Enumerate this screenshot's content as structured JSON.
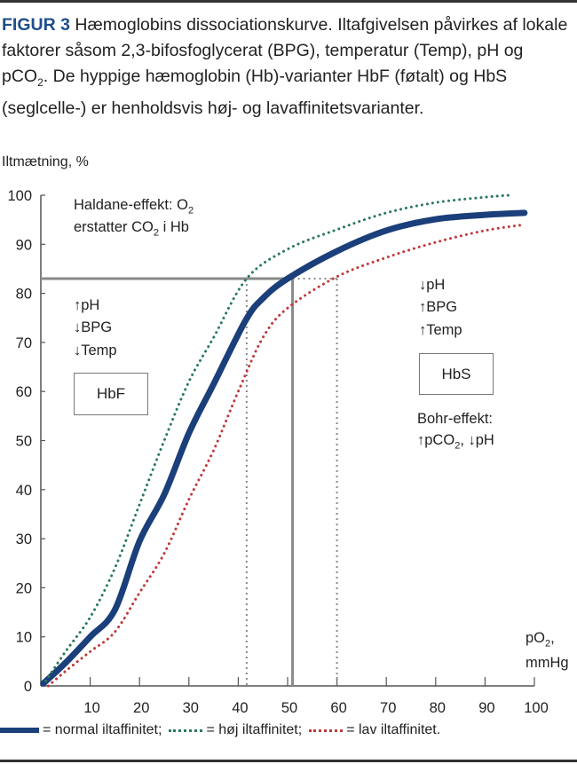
{
  "caption": {
    "label": "FIGUR 3",
    "text": " Hæmoglobins dissociationskurve. Iltafgivelsen påvirkes af lokale faktorer såsom 2,3-bifosfoglycerat (BPG), temperatur (Temp), pH og pCO",
    "sub": "2",
    "text2": ". De hyppige hæmoglobin (Hb)-varianter HbF (føtalt) og HbS (seglcelle-) er henholdsvis høj- og lavaffinitetsvarianter."
  },
  "annotations": {
    "haldane_1": "Haldane-effekt: O",
    "haldane_1_sub": "2",
    "haldane_2a": "erstatter CO",
    "haldane_2_sub": "2",
    "haldane_2b": " i Hb",
    "left_1": "↑pH",
    "left_2": "↓BPG",
    "left_3": "↓Temp",
    "hbf": "HbF",
    "right_1": "↓pH",
    "right_2": "↑BPG",
    "right_3": "↑Temp",
    "hbs": "HbS",
    "bohr_1": "Bohr-effekt:",
    "bohr_2a": "↑pCO",
    "bohr_2_sub": "2",
    "bohr_2b": ", ↓pH"
  },
  "chart_data": {
    "type": "line",
    "title": "Hæmoglobins dissociationskurve",
    "ylabel": "Iltmætning, %",
    "xlabel_1": "pO",
    "xlabel_sub": "2",
    "xlabel_2": ",",
    "xlabel_unit": "mmHg",
    "xlim": [
      0,
      100
    ],
    "ylim": [
      0,
      100
    ],
    "xticks": [
      10,
      20,
      30,
      40,
      50,
      60,
      70,
      80,
      90,
      100
    ],
    "yticks": [
      0,
      10,
      20,
      30,
      40,
      50,
      60,
      70,
      80,
      90,
      100
    ],
    "grid": false,
    "series": [
      {
        "name": "normal iltaffinitet",
        "style": "solid",
        "color": "#1a3f7a",
        "x": [
          0.5,
          5,
          10,
          15,
          20,
          25,
          30,
          35,
          41.5,
          45,
          50,
          60,
          70,
          80,
          90,
          98
        ],
        "y": [
          0.5,
          4.7,
          10,
          15.5,
          29.5,
          39,
          51.5,
          61.5,
          74.5,
          79,
          83,
          88.6,
          92.8,
          95.1,
          96,
          96.4
        ]
      },
      {
        "name": "høj iltaffinitet",
        "style": "dotted",
        "color": "#2a7a5a",
        "x": [
          1,
          5,
          10,
          15,
          20,
          25,
          30,
          35,
          41.7,
          50,
          60,
          70,
          80,
          90,
          95
        ],
        "y": [
          1,
          7,
          14,
          24,
          37,
          50,
          62,
          71,
          83,
          89,
          93,
          96.4,
          98.5,
          99.6,
          100
        ]
      },
      {
        "name": "lav iltaffinitet",
        "style": "dotted",
        "color": "#c0393b",
        "x": [
          1.5,
          5,
          10,
          15,
          20,
          25,
          30,
          35,
          40,
          45,
          50,
          60,
          70,
          80,
          90,
          98
        ],
        "y": [
          0,
          3,
          7,
          11,
          19,
          27,
          38,
          48,
          60,
          71,
          77,
          83.4,
          87.3,
          90.4,
          92.8,
          94
        ]
      }
    ],
    "reference": {
      "p50_normal": 51,
      "p50_high": 41.7,
      "p50_low": 60,
      "saturation": 83
    },
    "legend": {
      "placement": "bottom",
      "normal": "= normal iltaffinitet;",
      "high": "= høj iltaffinitet;",
      "low": "= lav iltaffinitet."
    }
  }
}
